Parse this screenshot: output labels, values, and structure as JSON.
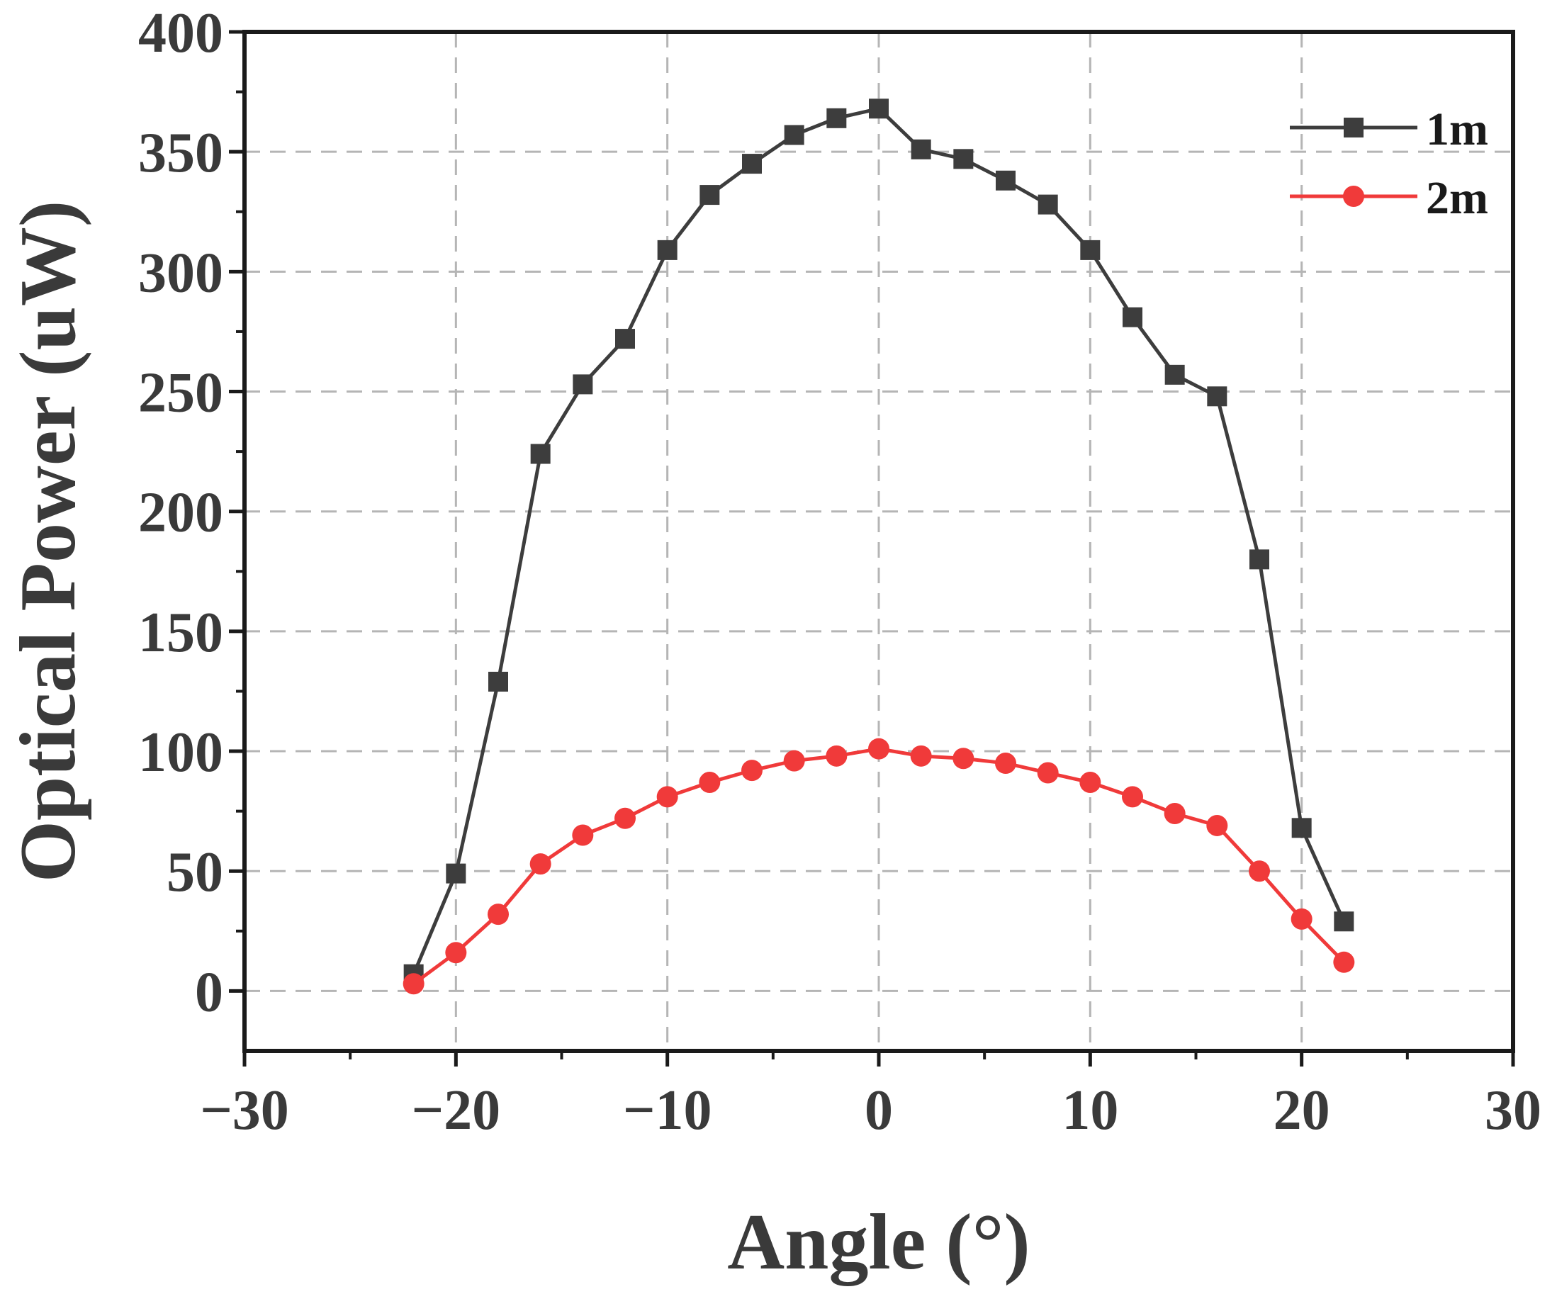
{
  "chart_data": {
    "type": "line",
    "title": "",
    "xlabel": "Angle (°)",
    "ylabel": "Optical Power (uW)",
    "xlim": [
      -30,
      30
    ],
    "ylim": [
      -25,
      400
    ],
    "xticks": [
      -30,
      -20,
      -10,
      0,
      10,
      20,
      30
    ],
    "yticks": [
      0,
      50,
      100,
      150,
      200,
      250,
      300,
      350,
      400
    ],
    "xtick_labels": [
      "−30",
      "−20",
      "−10",
      "0",
      "10",
      "20",
      "30"
    ],
    "ytick_labels": [
      "0",
      "50",
      "100",
      "150",
      "200",
      "250",
      "300",
      "350",
      "400"
    ],
    "grid": true,
    "legend_position": "top-right",
    "x": [
      -22,
      -20,
      -18,
      -16,
      -14,
      -12,
      -10,
      -8,
      -6,
      -4,
      -2,
      0,
      2,
      4,
      6,
      8,
      10,
      12,
      14,
      16,
      18,
      20,
      22
    ],
    "series": [
      {
        "name": "1m",
        "color": "#3d3d3d",
        "marker": "square",
        "values": [
          7,
          49,
          129,
          224,
          253,
          272,
          309,
          332,
          345,
          357,
          364,
          368,
          351,
          347,
          338,
          328,
          309,
          281,
          257,
          248,
          180,
          68,
          29
        ]
      },
      {
        "name": "2m",
        "color": "#f03a3a",
        "marker": "circle",
        "values": [
          3,
          16,
          32,
          53,
          65,
          72,
          81,
          87,
          92,
          96,
          98,
          101,
          98,
          97,
          95,
          91,
          87,
          81,
          74,
          69,
          50,
          30,
          12
        ]
      }
    ]
  }
}
